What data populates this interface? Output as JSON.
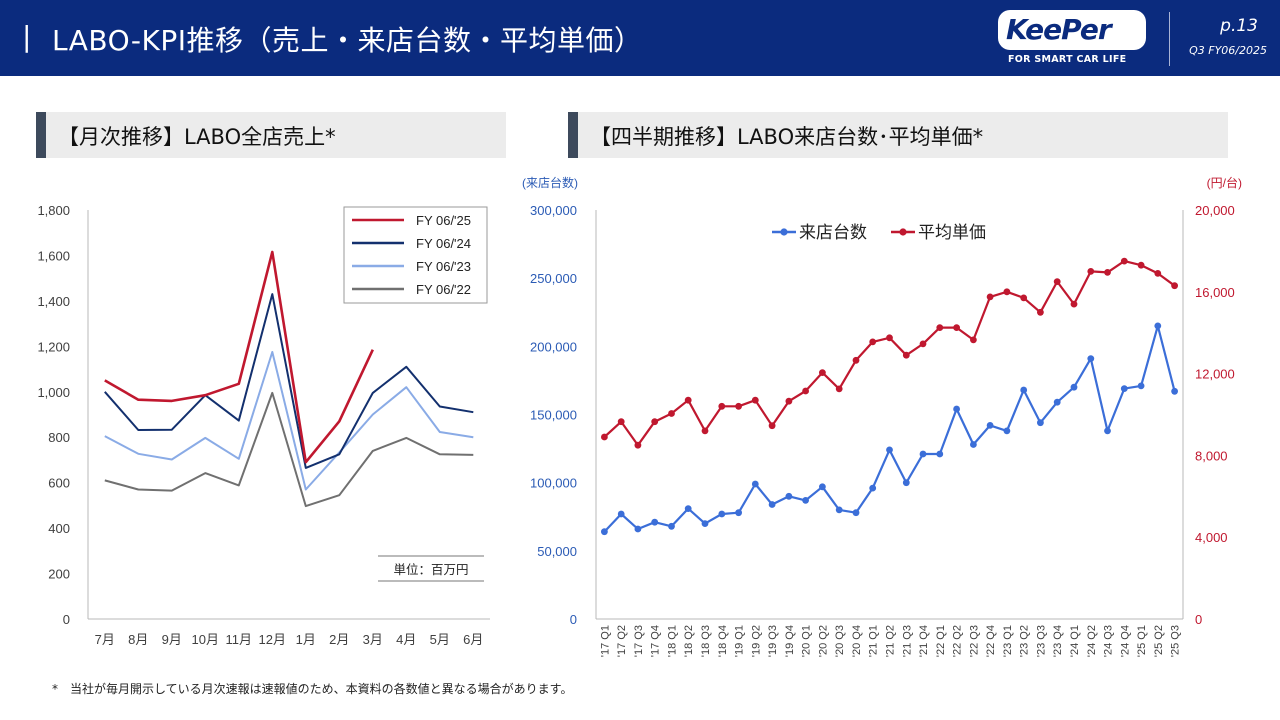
{
  "header": {
    "bar": "|",
    "title": "LABO-KPI推移（売上・来店台数・平均単価）",
    "logo_text": "KeePer",
    "logo_tagline": "FOR SMART CAR LIFE",
    "page": "p.13",
    "period": "Q3 FY06/2025",
    "bg_color": "#0b2b7e"
  },
  "left_section": {
    "title": "【月次推移】LABO全店売上*"
  },
  "right_section": {
    "title": "【四半期推移】LABO来店台数･平均単価*"
  },
  "footnote": "*　当社が毎月開示している月次速報は速報値のため、本資料の各数値と異なる場合があります。",
  "chart_data": [
    {
      "type": "line",
      "categories": [
        "7月",
        "8月",
        "9月",
        "10月",
        "11月",
        "12月",
        "1月",
        "2月",
        "3月",
        "4月",
        "5月",
        "6月"
      ],
      "series": [
        {
          "name": "FY 06/'25",
          "color": "#c0182f",
          "values": [
            1050,
            965,
            960,
            985,
            1035,
            1615,
            690,
            870,
            1185,
            null,
            null,
            null
          ]
        },
        {
          "name": "FY 06/'24",
          "color": "#13306e",
          "values": [
            1000,
            832,
            833,
            985,
            873,
            1430,
            665,
            725,
            995,
            1110,
            935,
            910
          ]
        },
        {
          "name": "FY 06/'23",
          "color": "#8aabe6",
          "values": [
            805,
            727,
            702,
            797,
            705,
            1175,
            570,
            733,
            900,
            1020,
            823,
            800
          ]
        },
        {
          "name": "FY 06/'22",
          "color": "#707070",
          "values": [
            610,
            570,
            565,
            642,
            588,
            995,
            497,
            545,
            740,
            797,
            725,
            722
          ]
        }
      ],
      "ylim": [
        0,
        1800
      ],
      "yticks": [
        "0",
        "200",
        "400",
        "600",
        "800",
        "1,000",
        "1,200",
        "1,400",
        "1,600",
        "1,800"
      ],
      "unit_note": "単位：百万円",
      "legend_position": "top-right",
      "grid": false
    },
    {
      "type": "line",
      "categories": [
        "'17 Q1",
        "'17 Q2",
        "'17 Q3",
        "'17 Q4",
        "'18 Q1",
        "'18 Q2",
        "'18 Q3",
        "'18 Q4",
        "'19 Q1",
        "'19 Q2",
        "'19 Q3",
        "'19 Q4",
        "'20 Q1",
        "'20 Q2",
        "'20 Q3",
        "'20 Q4",
        "'21 Q1",
        "'21 Q2",
        "'21 Q3",
        "'21 Q4",
        "'22 Q1",
        "'22 Q2",
        "'22 Q3",
        "'22 Q4",
        "'23 Q1",
        "'23 Q2",
        "'23 Q3",
        "'23 Q4",
        "'24 Q1",
        "'24 Q2",
        "'24 Q3",
        "'24 Q4",
        "'25 Q1",
        "'25 Q2",
        "'25 Q3"
      ],
      "series": [
        {
          "name": "来店台数",
          "axis": "left",
          "color": "#3b6ed8",
          "values": [
            64000,
            77000,
            66000,
            71000,
            68000,
            81000,
            70000,
            77000,
            78000,
            99000,
            84000,
            90000,
            87000,
            97000,
            80000,
            78000,
            96000,
            124000,
            100000,
            121000,
            121000,
            154000,
            128000,
            142000,
            138000,
            168000,
            144000,
            159000,
            170000,
            191000,
            138000,
            169000,
            171000,
            215000,
            167000
          ]
        },
        {
          "name": "平均単価",
          "axis": "right",
          "color": "#c0182f",
          "values": [
            8900,
            9650,
            8500,
            9650,
            10050,
            10700,
            9200,
            10400,
            10400,
            10700,
            9450,
            10650,
            11150,
            12050,
            11250,
            12650,
            13550,
            13750,
            12900,
            13450,
            14250,
            14250,
            13650,
            15750,
            16000,
            15700,
            15000,
            16500,
            15400,
            17000,
            16950,
            17500,
            17300,
            16900,
            16300
          ]
        }
      ],
      "yleft_label": "(来店台数)",
      "yright_label": "(円/台)",
      "yleft_lim": [
        0,
        300000
      ],
      "yright_lim": [
        0,
        20000
      ],
      "yleft_ticks": [
        "0",
        "50,000",
        "100,000",
        "150,000",
        "200,000",
        "250,000",
        "300,000"
      ],
      "yright_ticks": [
        "0",
        "4,000",
        "8,000",
        "12,000",
        "16,000",
        "20,000"
      ],
      "left_color": "#2b5bb5",
      "right_color": "#c0182f",
      "legend_position": "top",
      "grid": false
    }
  ]
}
